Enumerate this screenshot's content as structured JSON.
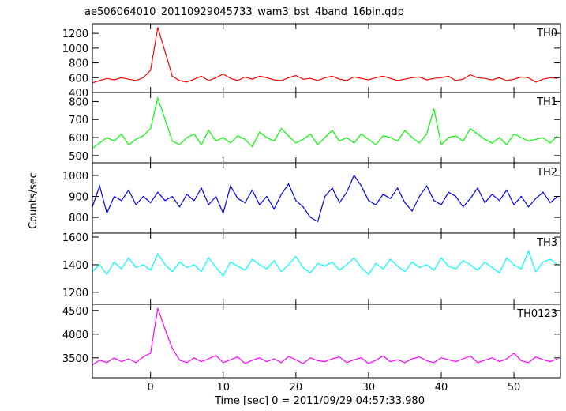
{
  "chart_data": {
    "type": "line",
    "title": "ae506064010_20110929045733_wam3_bst_4band_16bin.qdp",
    "xlabel": "Time [sec] 0 = 2011/09/29 04:57:33.980",
    "ylabel": "Counts/sec",
    "xlim": [
      -8,
      56.4
    ],
    "xticks": [
      0,
      10,
      20,
      30,
      40,
      50
    ],
    "grid": false,
    "x": [
      -8,
      -7,
      -6,
      -5,
      -4,
      -3,
      -2,
      -1,
      0,
      1,
      2,
      3,
      4,
      5,
      6,
      7,
      8,
      9,
      10,
      11,
      12,
      13,
      14,
      15,
      16,
      17,
      18,
      19,
      20,
      21,
      22,
      23,
      24,
      25,
      26,
      27,
      28,
      29,
      30,
      31,
      32,
      33,
      34,
      35,
      36,
      37,
      38,
      39,
      40,
      41,
      42,
      43,
      44,
      45,
      46,
      47,
      48,
      49,
      50,
      51,
      52,
      53,
      54,
      55,
      56
    ],
    "series": [
      {
        "name": "TH0",
        "color": "#ff0000",
        "ylim": [
          400,
          1330
        ],
        "yticks": [
          400,
          600,
          800,
          1000,
          1200
        ],
        "values": [
          530,
          560,
          590,
          570,
          600,
          580,
          560,
          600,
          700,
          1280,
          950,
          620,
          560,
          540,
          580,
          620,
          560,
          600,
          650,
          590,
          560,
          610,
          580,
          620,
          600,
          570,
          560,
          600,
          630,
          580,
          590,
          560,
          600,
          620,
          580,
          560,
          610,
          590,
          570,
          600,
          620,
          590,
          560,
          580,
          600,
          610,
          570,
          590,
          600,
          620,
          560,
          580,
          640,
          600,
          590,
          570,
          600,
          560,
          580,
          610,
          600,
          540,
          580,
          600,
          590
        ]
      },
      {
        "name": "TH1",
        "color": "#00ff00",
        "ylim": [
          460,
          850
        ],
        "yticks": [
          500,
          600,
          700,
          800
        ],
        "values": [
          540,
          570,
          600,
          580,
          620,
          560,
          590,
          610,
          650,
          820,
          700,
          580,
          560,
          600,
          620,
          560,
          640,
          580,
          600,
          570,
          610,
          590,
          550,
          630,
          600,
          580,
          650,
          610,
          570,
          590,
          620,
          560,
          600,
          640,
          580,
          600,
          570,
          620,
          590,
          560,
          610,
          600,
          580,
          640,
          600,
          570,
          620,
          760,
          560,
          600,
          610,
          580,
          650,
          620,
          590,
          570,
          600,
          560,
          620,
          600,
          580,
          590,
          600,
          570,
          610
        ]
      },
      {
        "name": "TH2",
        "color": "#0000ff",
        "ylim": [
          725,
          1060
        ],
        "yticks": [
          800,
          900,
          1000
        ],
        "values": [
          850,
          950,
          820,
          900,
          880,
          930,
          860,
          900,
          870,
          920,
          880,
          900,
          850,
          910,
          880,
          940,
          860,
          900,
          820,
          950,
          890,
          870,
          930,
          860,
          900,
          840,
          910,
          960,
          880,
          850,
          800,
          780,
          900,
          940,
          870,
          920,
          1000,
          950,
          880,
          860,
          910,
          890,
          940,
          870,
          830,
          900,
          950,
          880,
          860,
          920,
          900,
          850,
          890,
          940,
          870,
          910,
          880,
          930,
          860,
          900,
          850,
          890,
          920,
          870,
          900
        ]
      },
      {
        "name": "TH3",
        "color": "#00ffff",
        "ylim": [
          1113,
          1629
        ],
        "yticks": [
          1200,
          1400,
          1600
        ],
        "values": [
          1350,
          1400,
          1330,
          1420,
          1370,
          1450,
          1380,
          1400,
          1360,
          1480,
          1400,
          1350,
          1420,
          1380,
          1400,
          1350,
          1450,
          1380,
          1320,
          1420,
          1390,
          1360,
          1440,
          1400,
          1370,
          1430,
          1350,
          1400,
          1460,
          1380,
          1340,
          1410,
          1390,
          1420,
          1360,
          1400,
          1450,
          1380,
          1330,
          1410,
          1370,
          1440,
          1390,
          1350,
          1420,
          1380,
          1400,
          1360,
          1450,
          1390,
          1370,
          1430,
          1400,
          1360,
          1420,
          1380,
          1340,
          1450,
          1400,
          1370,
          1500,
          1350,
          1420,
          1440,
          1400
        ]
      },
      {
        "name": "TH0123",
        "color": "#ff00ff",
        "ylim": [
          3080,
          4630
        ],
        "yticks": [
          3500,
          4000,
          4500
        ],
        "values": [
          3350,
          3450,
          3400,
          3500,
          3420,
          3480,
          3400,
          3520,
          3600,
          4550,
          4100,
          3700,
          3450,
          3400,
          3500,
          3420,
          3480,
          3550,
          3400,
          3460,
          3520,
          3380,
          3450,
          3500,
          3420,
          3480,
          3400,
          3530,
          3460,
          3380,
          3500,
          3440,
          3420,
          3480,
          3520,
          3400,
          3460,
          3500,
          3380,
          3450,
          3540,
          3420,
          3460,
          3400,
          3480,
          3520,
          3440,
          3400,
          3500,
          3460,
          3420,
          3480,
          3540,
          3400,
          3450,
          3500,
          3420,
          3480,
          3600,
          3440,
          3400,
          3520,
          3460,
          3420,
          3480
        ]
      }
    ]
  }
}
